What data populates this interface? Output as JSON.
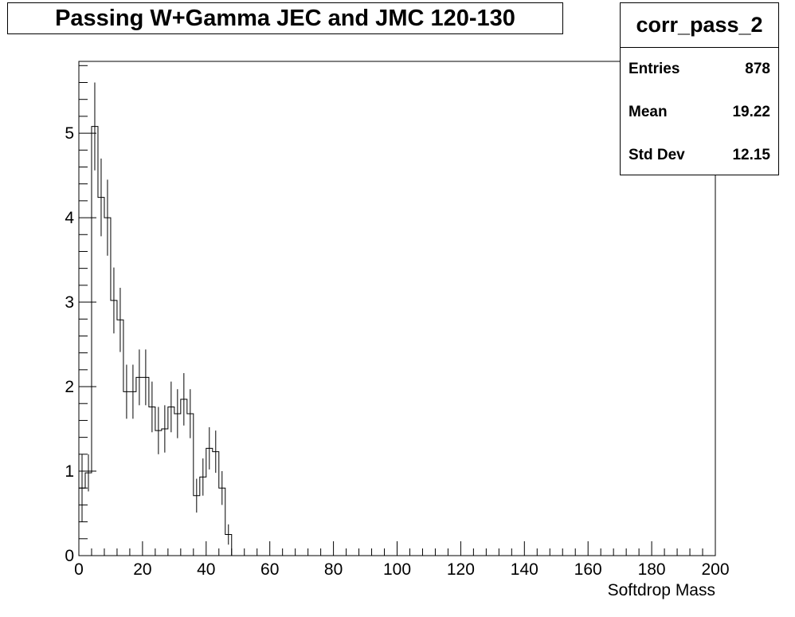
{
  "title": "Passing W+Gamma JEC and JMC 120-130",
  "stats": {
    "name": "corr_pass_2",
    "rows": [
      {
        "label": "Entries",
        "value": "878"
      },
      {
        "label": "Mean",
        "value": "19.22"
      },
      {
        "label": "Std Dev",
        "value": "12.15"
      }
    ]
  },
  "chart_data": {
    "type": "histogram",
    "title": "Passing W+Gamma JEC and JMC 120-130",
    "xlabel": "Softdrop Mass",
    "ylabel": "",
    "xlim": [
      0,
      200
    ],
    "ylim": [
      0,
      5.85
    ],
    "bin_width": 2,
    "x_ticks": [
      0,
      20,
      40,
      60,
      80,
      100,
      120,
      140,
      160,
      180,
      200
    ],
    "y_ticks": [
      0,
      1,
      2,
      3,
      4,
      5
    ],
    "bins": [
      {
        "x": 0,
        "y": 0.8,
        "err": 0.4
      },
      {
        "x": 2,
        "y": 0.98,
        "err": 0.22
      },
      {
        "x": 4,
        "y": 5.08,
        "err": 0.52
      },
      {
        "x": 6,
        "y": 4.24,
        "err": 0.46
      },
      {
        "x": 8,
        "y": 4.0,
        "err": 0.45
      },
      {
        "x": 10,
        "y": 3.02,
        "err": 0.39
      },
      {
        "x": 12,
        "y": 2.79,
        "err": 0.38
      },
      {
        "x": 14,
        "y": 1.94,
        "err": 0.32
      },
      {
        "x": 16,
        "y": 1.94,
        "err": 0.32
      },
      {
        "x": 18,
        "y": 2.11,
        "err": 0.33
      },
      {
        "x": 20,
        "y": 2.11,
        "err": 0.33
      },
      {
        "x": 22,
        "y": 1.76,
        "err": 0.3
      },
      {
        "x": 24,
        "y": 1.48,
        "err": 0.28
      },
      {
        "x": 26,
        "y": 1.5,
        "err": 0.28
      },
      {
        "x": 28,
        "y": 1.76,
        "err": 0.3
      },
      {
        "x": 30,
        "y": 1.68,
        "err": 0.29
      },
      {
        "x": 32,
        "y": 1.85,
        "err": 0.31
      },
      {
        "x": 34,
        "y": 1.68,
        "err": 0.29
      },
      {
        "x": 36,
        "y": 0.71,
        "err": 0.2
      },
      {
        "x": 38,
        "y": 0.93,
        "err": 0.22
      },
      {
        "x": 40,
        "y": 1.27,
        "err": 0.25
      },
      {
        "x": 42,
        "y": 1.23,
        "err": 0.25
      },
      {
        "x": 44,
        "y": 0.8,
        "err": 0.2
      },
      {
        "x": 46,
        "y": 0.25,
        "err": 0.12
      },
      {
        "x": 48,
        "y": 0,
        "err": 0
      }
    ]
  }
}
